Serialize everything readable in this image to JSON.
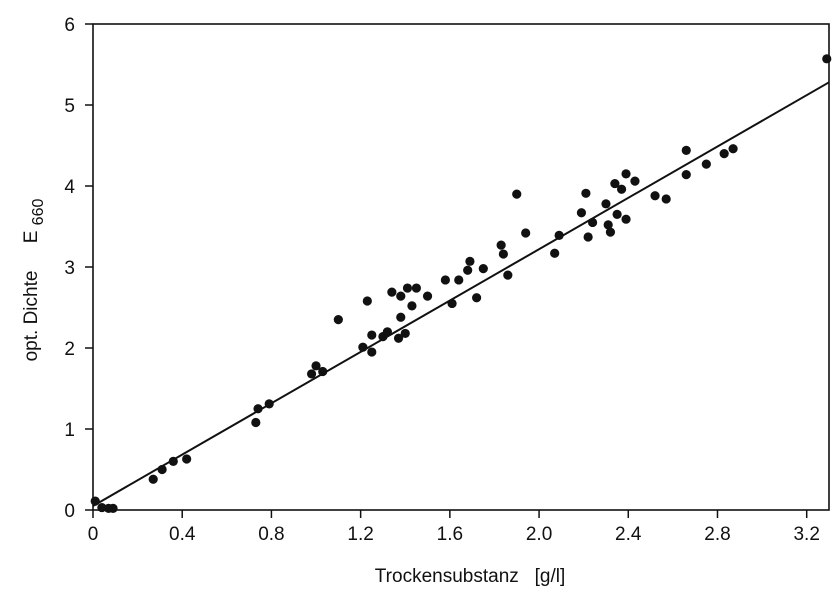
{
  "chart_data": {
    "type": "scatter",
    "title": "",
    "xlabel": "Trockensubstanz   [g/l]",
    "ylabel": {
      "main": "opt. Dichte",
      "symbol": "E",
      "subscript": "660"
    },
    "xlim": [
      0,
      3.3
    ],
    "ylim": [
      0,
      6
    ],
    "x_ticks": [
      "0",
      "0.4",
      "0.8",
      "1.2",
      "1.6",
      "2.0",
      "2.4",
      "2.8",
      "3.2"
    ],
    "x_tick_values": [
      0,
      0.4,
      0.8,
      1.2,
      1.6,
      2.0,
      2.4,
      2.8,
      3.2
    ],
    "y_ticks": [
      "0",
      "1",
      "2",
      "3",
      "4",
      "5",
      "6"
    ],
    "y_tick_values": [
      0,
      1,
      2,
      3,
      4,
      5,
      6
    ],
    "grid": false,
    "legend": "none",
    "marker_color": "#111111",
    "points": [
      [
        0.01,
        0.11
      ],
      [
        0.04,
        0.03
      ],
      [
        0.07,
        0.02
      ],
      [
        0.09,
        0.02
      ],
      [
        0.27,
        0.38
      ],
      [
        0.31,
        0.5
      ],
      [
        0.36,
        0.6
      ],
      [
        0.42,
        0.63
      ],
      [
        0.73,
        1.08
      ],
      [
        0.74,
        1.25
      ],
      [
        0.79,
        1.31
      ],
      [
        0.98,
        1.68
      ],
      [
        1.0,
        1.78
      ],
      [
        1.03,
        1.71
      ],
      [
        1.1,
        2.35
      ],
      [
        1.21,
        2.01
      ],
      [
        1.23,
        2.58
      ],
      [
        1.25,
        1.95
      ],
      [
        1.25,
        2.16
      ],
      [
        1.3,
        2.14
      ],
      [
        1.32,
        2.2
      ],
      [
        1.34,
        2.69
      ],
      [
        1.37,
        2.12
      ],
      [
        1.38,
        2.38
      ],
      [
        1.38,
        2.64
      ],
      [
        1.4,
        2.18
      ],
      [
        1.41,
        2.74
      ],
      [
        1.43,
        2.52
      ],
      [
        1.45,
        2.74
      ],
      [
        1.5,
        2.64
      ],
      [
        1.58,
        2.84
      ],
      [
        1.61,
        2.55
      ],
      [
        1.64,
        2.84
      ],
      [
        1.68,
        2.96
      ],
      [
        1.69,
        3.07
      ],
      [
        1.72,
        2.62
      ],
      [
        1.75,
        2.98
      ],
      [
        1.83,
        3.27
      ],
      [
        1.84,
        3.16
      ],
      [
        1.86,
        2.9
      ],
      [
        1.9,
        3.9
      ],
      [
        1.94,
        3.42
      ],
      [
        2.07,
        3.17
      ],
      [
        2.09,
        3.39
      ],
      [
        2.19,
        3.67
      ],
      [
        2.21,
        3.91
      ],
      [
        2.22,
        3.37
      ],
      [
        2.24,
        3.55
      ],
      [
        2.3,
        3.78
      ],
      [
        2.31,
        3.52
      ],
      [
        2.32,
        3.43
      ],
      [
        2.34,
        4.03
      ],
      [
        2.35,
        3.65
      ],
      [
        2.37,
        3.96
      ],
      [
        2.39,
        4.15
      ],
      [
        2.39,
        3.59
      ],
      [
        2.43,
        4.06
      ],
      [
        2.52,
        3.88
      ],
      [
        2.57,
        3.84
      ],
      [
        2.66,
        4.44
      ],
      [
        2.66,
        4.14
      ],
      [
        2.75,
        4.27
      ],
      [
        2.83,
        4.4
      ],
      [
        2.87,
        4.46
      ],
      [
        3.29,
        5.57
      ]
    ],
    "fit_line": {
      "x": [
        0,
        3.3
      ],
      "y": [
        0.05,
        5.28
      ]
    }
  }
}
